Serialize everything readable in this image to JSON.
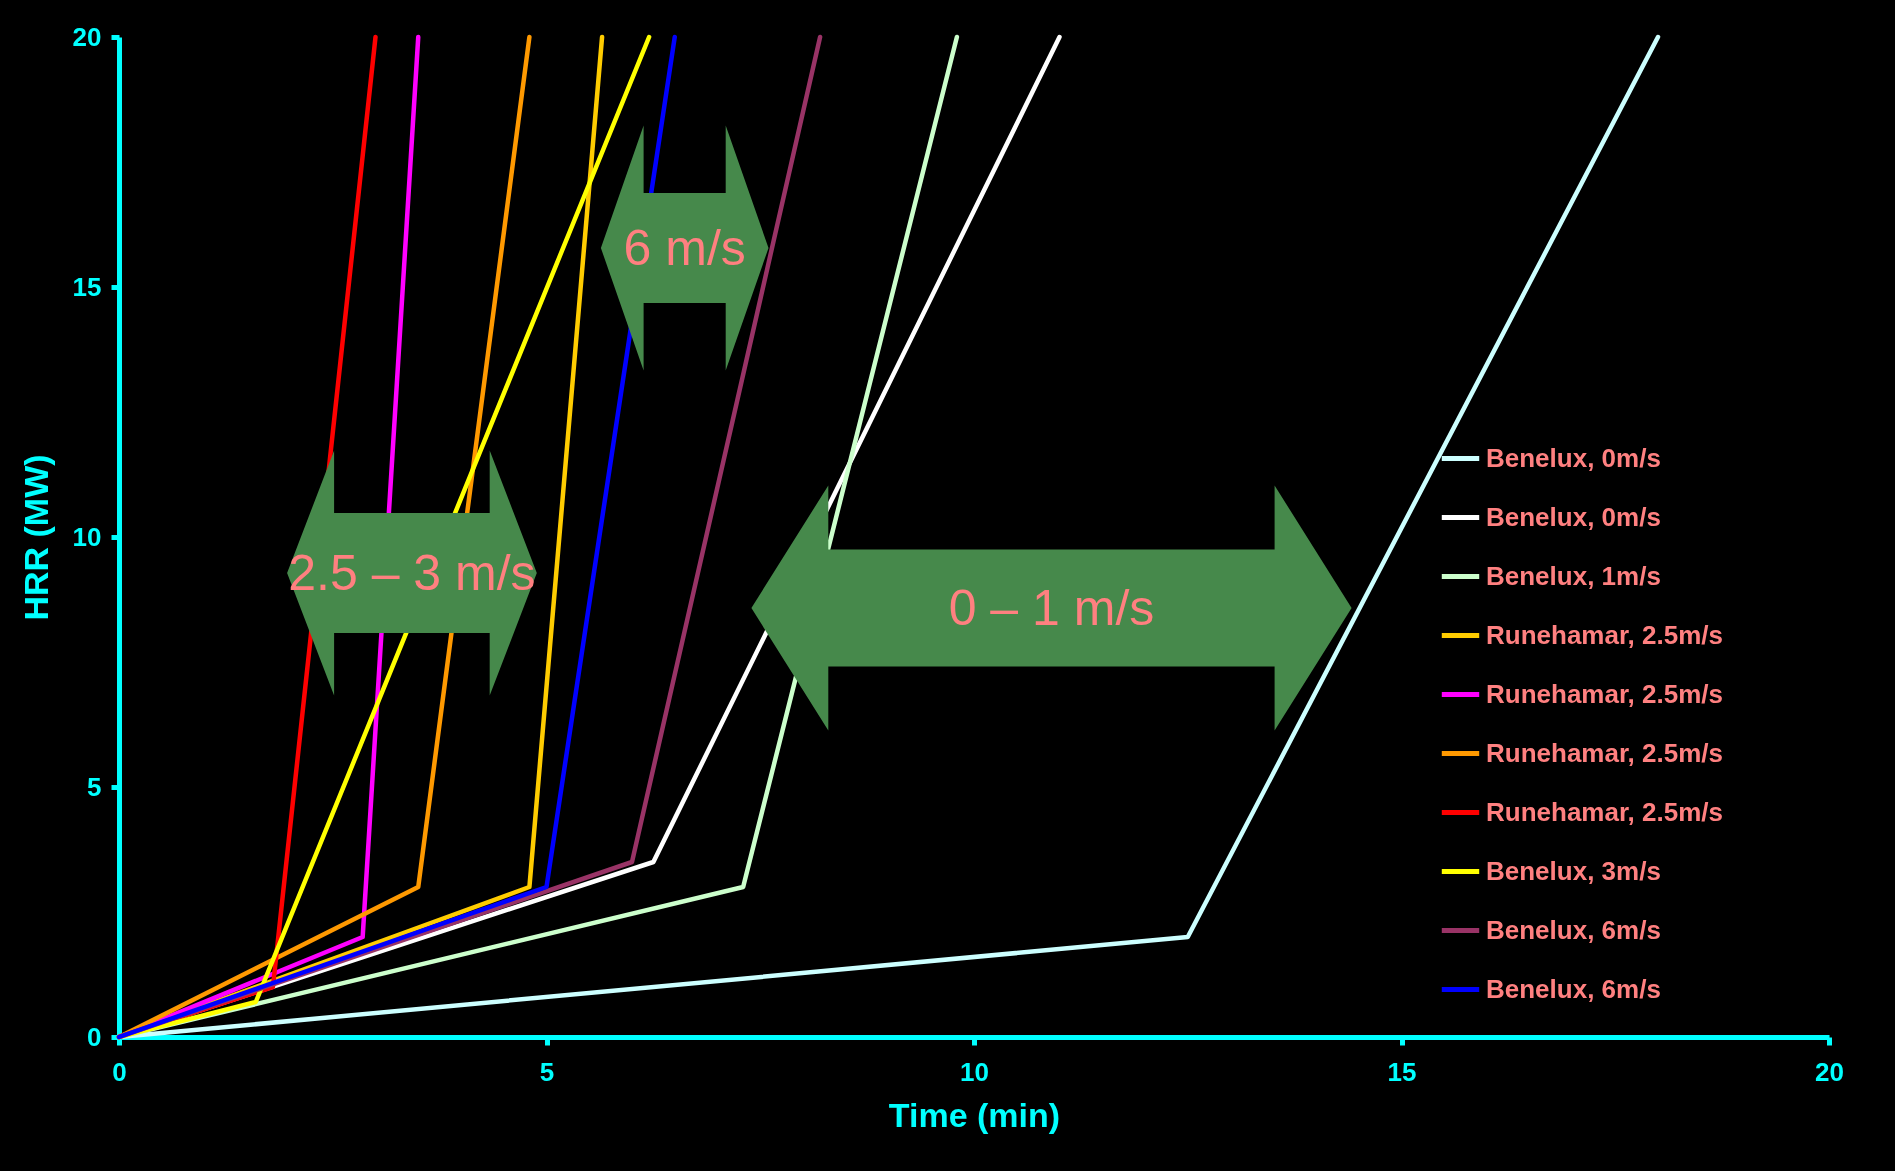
{
  "chart_data": {
    "type": "line",
    "xlabel": "Time (min)",
    "ylabel": "HRR (MW)",
    "xlim": [
      0,
      20
    ],
    "ylim": [
      0,
      20
    ],
    "xticks": [
      0,
      5,
      10,
      15,
      20
    ],
    "yticks": [
      0,
      5,
      10,
      15,
      20
    ],
    "legend": "right",
    "line_style": "solid",
    "annotations": [
      "2.5 – 3 m/s",
      "6 m/s",
      "0 – 1 m/s"
    ],
    "series": [
      {
        "name": "Benelux, 0m/s",
        "color": "#ccffff",
        "x": [
          0,
          12.5,
          18
        ],
        "values": [
          0,
          2,
          20
        ]
      },
      {
        "name": "Benelux, 0m/s",
        "color": "#ffffff",
        "x": [
          0,
          6.25,
          11
        ],
        "values": [
          0,
          3.5,
          20
        ]
      },
      {
        "name": "Benelux, 1m/s",
        "color": "#ccffcc",
        "x": [
          0,
          7.3,
          9.8
        ],
        "values": [
          0,
          3,
          20
        ]
      },
      {
        "name": "Runehamar, 2.5m/s",
        "color": "#ffcc00",
        "x": [
          0,
          4.8,
          5.65
        ],
        "values": [
          0,
          3,
          20
        ]
      },
      {
        "name": "Runehamar, 2.5m/s",
        "color": "#ff00ff",
        "x": [
          0,
          2.85,
          3.5
        ],
        "values": [
          0,
          2,
          20
        ]
      },
      {
        "name": "Runehamar, 2.5m/s",
        "color": "#ff9900",
        "x": [
          0,
          3.5,
          4.8
        ],
        "values": [
          0,
          3,
          20
        ]
      },
      {
        "name": "Runehamar, 2.5m/s",
        "color": "#ff0000",
        "x": [
          0,
          1.8,
          3
        ],
        "values": [
          0,
          1,
          20
        ]
      },
      {
        "name": "Benelux, 3m/s",
        "color": "#ffff00",
        "x": [
          0,
          1.6,
          6.2
        ],
        "values": [
          0,
          0.7,
          20
        ]
      },
      {
        "name": "Benelux, 6m/s",
        "color": "#993366",
        "x": [
          0,
          6,
          8.2
        ],
        "values": [
          0,
          3.5,
          20
        ]
      },
      {
        "name": "Benelux, 6m/s",
        "color": "#0000ff",
        "x": [
          0,
          5,
          6.5
        ],
        "values": [
          0,
          3,
          20
        ]
      }
    ]
  }
}
